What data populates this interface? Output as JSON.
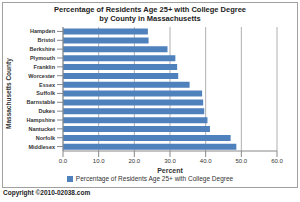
{
  "chart_data": {
    "type": "bar",
    "title": "Percentage of Residents Age 25+ with College Degree",
    "subtitle": "by County in Massachusetts",
    "xlabel": "Percent",
    "ylabel": "Massachusetts County",
    "orientation": "horizontal",
    "categories": [
      "Hampden",
      "Bristol",
      "Berkshire",
      "Plymouth",
      "Franklin",
      "Worcester",
      "Essex",
      "Suffolk",
      "Barnstable",
      "Dukes",
      "Hampshire",
      "Nantucket",
      "Norfolk",
      "Middlesex"
    ],
    "series": [
      {
        "name": "Percentage of Residents Age 25+ with College Degree",
        "color": "#4f81bd",
        "values": [
          23.8,
          24.0,
          29.3,
          31.5,
          32.0,
          32.3,
          35.5,
          39.0,
          39.3,
          39.6,
          40.5,
          41.2,
          47.0,
          48.6
        ]
      }
    ],
    "xlim": [
      0,
      60
    ],
    "xticks": [
      {
        "value": 0,
        "label": "0.0"
      },
      {
        "value": 10,
        "label": "10.0"
      },
      {
        "value": 20,
        "label": "20.0"
      },
      {
        "value": 30,
        "label": "30.0"
      },
      {
        "value": 40,
        "label": "40.0"
      },
      {
        "value": 50,
        "label": "50.0"
      },
      {
        "value": 60,
        "label": "60.0"
      }
    ],
    "grid": true,
    "legend": "bottom",
    "annotation": "Copyright ©2010-02038.com"
  }
}
